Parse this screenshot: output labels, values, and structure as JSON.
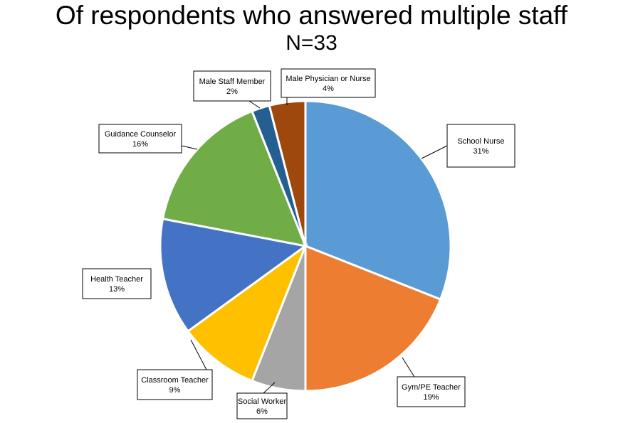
{
  "chart_data": {
    "type": "pie",
    "title": "Of respondents who answered multiple staff",
    "subtitle": "N=33",
    "slices": [
      {
        "label": "School Nurse",
        "display": "31%",
        "value": 31,
        "color": "#5B9BD5"
      },
      {
        "label": "Gym/PE Teacher",
        "display": "19%",
        "value": 19,
        "color": "#ED7D31"
      },
      {
        "label": "Social Worker",
        "display": "6%",
        "value": 6,
        "color": "#A5A5A5"
      },
      {
        "label": "Classroom Teacher",
        "display": "9%",
        "value": 9,
        "color": "#FFC000"
      },
      {
        "label": "Health Teacher",
        "display": "13%",
        "value": 13,
        "color": "#4472C4"
      },
      {
        "label": "Guidance Counselor",
        "display": "16%",
        "value": 16,
        "color": "#70AD47"
      },
      {
        "label": "Male Staff Member",
        "display": "2%",
        "value": 2,
        "color": "#255E91"
      },
      {
        "label": "Male Physician or Nurse",
        "display": "4%",
        "value": 4,
        "color": "#9E480E"
      }
    ],
    "legend": "none"
  }
}
